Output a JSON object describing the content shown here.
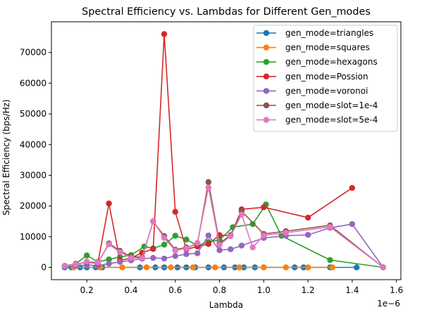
{
  "chart_data": {
    "type": "line",
    "title": "Spectral Efficiency vs. Lambdas for Different Gen_modes",
    "xlabel": "Lambda",
    "ylabel": "Spectral Efficiency (bps/Hz)",
    "x_offset_label": "1e−6",
    "x_scale_note": "x tick labels are multiples of 1e-6",
    "xlim": [
      0.04,
      1.62
    ],
    "ylim": [
      -4000,
      80000
    ],
    "xticks": [
      0.2,
      0.4,
      0.6,
      0.8,
      1.0,
      1.2,
      1.4,
      1.6
    ],
    "xtick_labels": [
      "0.2",
      "0.4",
      "0.6",
      "0.8",
      "1.0",
      "1.2",
      "1.4",
      "1.6"
    ],
    "yticks": [
      0,
      10000,
      20000,
      30000,
      40000,
      50000,
      60000,
      70000
    ],
    "ytick_labels": [
      "0",
      "10000",
      "20000",
      "30000",
      "40000",
      "50000",
      "60000",
      "70000"
    ],
    "grid": false,
    "legend_position": "top-right",
    "series": [
      {
        "name": "gen_mode=triangles",
        "color": "#1f77b4",
        "x": [
          0.1,
          0.13,
          0.17,
          0.2,
          0.24,
          0.27,
          0.44,
          0.51,
          0.55,
          0.61,
          0.65,
          0.69,
          0.75,
          0.82,
          0.87,
          0.91,
          0.96,
          1.0,
          1.14,
          1.18,
          1.3,
          1.42
        ],
        "y": [
          0,
          0,
          0,
          0,
          0,
          0,
          0,
          0,
          0,
          0,
          0,
          0,
          0,
          0,
          0,
          0,
          0,
          0,
          0,
          0,
          0,
          0
        ]
      },
      {
        "name": "gen_mode=squares",
        "color": "#ff7f0e",
        "x": [
          0.14,
          0.26,
          0.36,
          0.47,
          0.58,
          0.68,
          0.78,
          0.89,
          1.0,
          1.1,
          1.2,
          1.31
        ],
        "y": [
          0,
          0,
          0,
          0,
          0,
          0,
          0,
          0,
          0,
          0,
          0,
          0
        ]
      },
      {
        "name": "gen_mode=hexagons",
        "color": "#2ca02c",
        "x": [
          0.15,
          0.2,
          0.25,
          0.3,
          0.35,
          0.4,
          0.46,
          0.5,
          0.55,
          0.6,
          0.65,
          0.7,
          0.75,
          0.8,
          0.86,
          0.95,
          1.01,
          1.08,
          1.3,
          1.54
        ],
        "y": [
          1200,
          3900,
          1800,
          2600,
          3400,
          4000,
          6800,
          6200,
          7400,
          10300,
          9100,
          7100,
          8300,
          8900,
          13100,
          14100,
          20500,
          10300,
          2400,
          0
        ]
      },
      {
        "name": "gen_mode=Possion",
        "color": "#d62728",
        "x": [
          0.15,
          0.2,
          0.25,
          0.3,
          0.35,
          0.4,
          0.45,
          0.5,
          0.55,
          0.6,
          0.65,
          0.7,
          0.75,
          0.8,
          0.85,
          0.9,
          1.0,
          1.2,
          1.4
        ],
        "y": [
          1000,
          1800,
          1400,
          20800,
          2300,
          3000,
          4800,
          6000,
          76000,
          18100,
          5900,
          6800,
          7600,
          10500,
          10300,
          18900,
          19600,
          16200,
          25900
        ]
      },
      {
        "name": "gen_mode=voronoi",
        "color": "#9467bd",
        "x": [
          0.1,
          0.15,
          0.2,
          0.25,
          0.3,
          0.35,
          0.4,
          0.45,
          0.5,
          0.55,
          0.6,
          0.65,
          0.7,
          0.75,
          0.8,
          0.85,
          0.9,
          1.0,
          1.1,
          1.2,
          1.3,
          1.4,
          1.54
        ],
        "y": [
          400,
          500,
          800,
          600,
          1200,
          1800,
          2300,
          2800,
          3100,
          2900,
          3700,
          4300,
          4600,
          10400,
          5600,
          5900,
          7100,
          9600,
          10300,
          10600,
          12900,
          14100,
          0
        ]
      },
      {
        "name": "gen_mode=slot=1e-4",
        "color": "#8c564b",
        "x": [
          0.1,
          0.15,
          0.2,
          0.25,
          0.3,
          0.35,
          0.4,
          0.45,
          0.5,
          0.55,
          0.6,
          0.65,
          0.7,
          0.75,
          0.8,
          0.85,
          0.9,
          1.0,
          1.1,
          1.3,
          1.54
        ],
        "y": [
          500,
          1100,
          1700,
          1300,
          7800,
          5400,
          3500,
          3300,
          15000,
          10200,
          5800,
          6500,
          7600,
          27800,
          7800,
          10500,
          18300,
          10900,
          11800,
          13700,
          0
        ]
      },
      {
        "name": "gen_mode=slot=5e-4",
        "color": "#e377c2",
        "x": [
          0.1,
          0.15,
          0.2,
          0.25,
          0.3,
          0.35,
          0.4,
          0.45,
          0.5,
          0.55,
          0.6,
          0.65,
          0.7,
          0.75,
          0.8,
          0.85,
          0.9,
          0.95,
          1.0,
          1.1,
          1.3,
          1.54
        ],
        "y": [
          400,
          1000,
          1900,
          1600,
          7500,
          5000,
          3100,
          3000,
          15100,
          9600,
          5500,
          6200,
          8000,
          26000,
          7300,
          10200,
          17200,
          6500,
          10400,
          11300,
          13200,
          0
        ]
      }
    ]
  }
}
